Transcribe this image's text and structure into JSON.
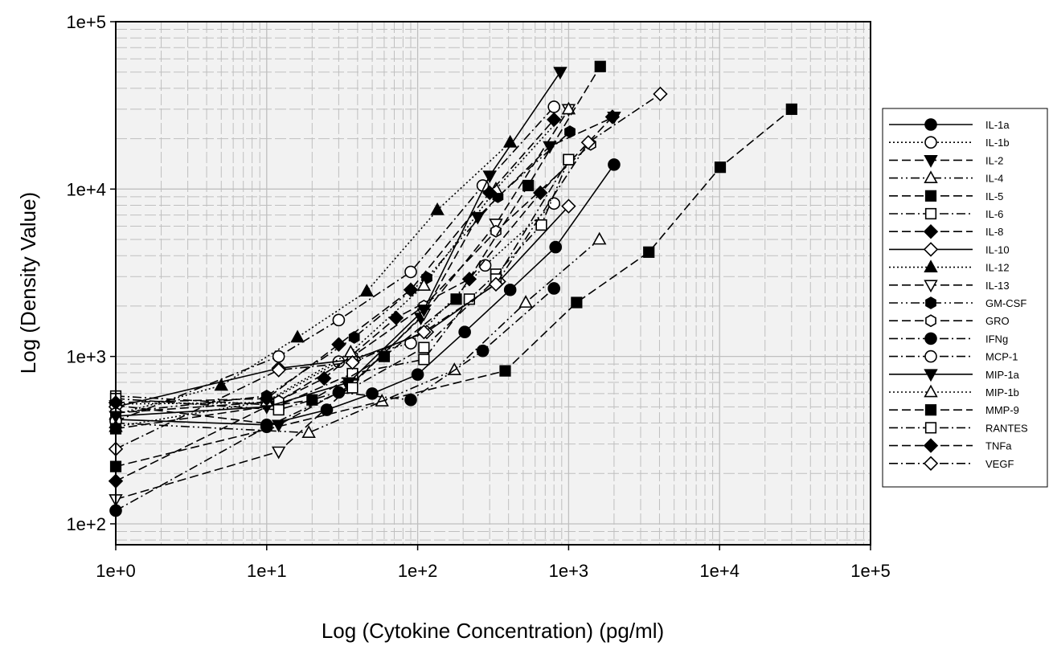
{
  "chart_data": {
    "type": "line",
    "x_scale": "log",
    "y_scale": "log",
    "xlim": [
      1,
      100000
    ],
    "ylim": [
      75,
      100000
    ],
    "grid": true,
    "legend_position": "right",
    "xlabel": "Log (Cytokine Concentration) (pg/ml)",
    "ylabel": "Log (Density Value)",
    "x_tick_labels": [
      "1e+0",
      "1e+1",
      "1e+2",
      "1e+3",
      "1e+4",
      "1e+5"
    ],
    "y_tick_labels": [
      "1e+2",
      "1e+3",
      "1e+4",
      "1e+5"
    ],
    "series": [
      {
        "name": "IL-1a",
        "marker": "circle",
        "fill": "filled",
        "dash": "solid",
        "x": [
          1,
          10,
          25,
          50,
          100,
          205,
          410,
          820,
          2000
        ],
        "y": [
          420,
          390,
          480,
          600,
          780,
          1400,
          2500,
          4500,
          14000
        ]
      },
      {
        "name": "IL-1b",
        "marker": "circle",
        "fill": "open",
        "dash": "dot",
        "x": [
          1,
          10,
          30,
          90,
          280,
          800
        ],
        "y": [
          520,
          530,
          930,
          1200,
          3500,
          8200
        ]
      },
      {
        "name": "IL-2",
        "marker": "triangle-down",
        "fill": "filled",
        "dash": "dash",
        "x": [
          1,
          12,
          35,
          105,
          250,
          750,
          2000
        ],
        "y": [
          510,
          390,
          660,
          1700,
          6800,
          18000,
          27000
        ]
      },
      {
        "name": "IL-4",
        "marker": "triangle-up",
        "fill": "open",
        "dash": "dashdotdot",
        "x": [
          1,
          19,
          58,
          175,
          520,
          1600
        ],
        "y": [
          400,
          350,
          540,
          830,
          2100,
          5000
        ]
      },
      {
        "name": "IL-5",
        "marker": "square",
        "fill": "filled",
        "dash": "dash",
        "x": [
          1,
          380,
          1130,
          3400,
          10100,
          30000
        ],
        "y": [
          220,
          820,
          2100,
          4200,
          13500,
          30000
        ]
      },
      {
        "name": "IL-6",
        "marker": "square",
        "fill": "open",
        "dash": "dashdot",
        "x": [
          1,
          12,
          37,
          110,
          220,
          330,
          660,
          1000
        ],
        "y": [
          580,
          510,
          790,
          960,
          2200,
          3100,
          6100,
          15000
        ]
      },
      {
        "name": "IL-8",
        "marker": "diamond",
        "fill": "filled",
        "dash": "dash",
        "x": [
          1,
          24,
          72,
          220,
          650,
          1950
        ],
        "y": [
          180,
          740,
          1700,
          2900,
          9500,
          27000
        ]
      },
      {
        "name": "IL-10",
        "marker": "diamond",
        "fill": "open",
        "dash": "solid",
        "x": [
          1,
          12,
          38,
          115,
          345,
          1000
        ],
        "y": [
          500,
          850,
          960,
          1400,
          2800,
          7900
        ]
      },
      {
        "name": "IL-12",
        "marker": "triangle-up",
        "fill": "filled",
        "dash": "dot",
        "x": [
          1,
          5,
          16,
          46,
          135,
          410
        ],
        "y": [
          450,
          670,
          1300,
          2450,
          7500,
          19000
        ]
      },
      {
        "name": "IL-13",
        "marker": "triangle-down",
        "fill": "open",
        "dash": "dash",
        "x": [
          1,
          12,
          37,
          110,
          330,
          1000
        ],
        "y": [
          140,
          270,
          680,
          1800,
          6200,
          30000
        ]
      },
      {
        "name": "GM-CSF",
        "marker": "hexagon",
        "fill": "filled",
        "dash": "dashdotdot",
        "x": [
          1,
          10,
          38,
          115,
          340,
          1020
        ],
        "y": [
          460,
          580,
          1300,
          2950,
          9000,
          22000
        ]
      },
      {
        "name": "GRO",
        "marker": "hexagon",
        "fill": "open",
        "dash": "dash",
        "x": [
          1,
          12,
          37,
          110,
          330,
          1400
        ],
        "y": [
          460,
          540,
          1000,
          2000,
          5600,
          18500
        ]
      },
      {
        "name": "IFNg",
        "marker": "circle",
        "fill": "filled",
        "dash": "dashdot",
        "x": [
          1,
          10,
          30,
          90,
          270,
          800
        ],
        "y": [
          120,
          380,
          610,
          550,
          1080,
          2550
        ]
      },
      {
        "name": "MCP-1",
        "marker": "circle",
        "fill": "open",
        "dash": "dashdot",
        "x": [
          1,
          12,
          30,
          90,
          270,
          800
        ],
        "y": [
          410,
          1000,
          1650,
          3200,
          10500,
          31000
        ]
      },
      {
        "name": "MIP-1a",
        "marker": "triangle-down",
        "fill": "filled",
        "dash": "solid",
        "x": [
          1,
          10,
          35,
          110,
          300,
          880
        ],
        "y": [
          440,
          500,
          700,
          1900,
          12000,
          50000
        ]
      },
      {
        "name": "MIP-1b",
        "marker": "triangle-up",
        "fill": "open",
        "dash": "dot",
        "x": [
          1,
          10,
          36,
          110,
          330,
          1000
        ],
        "y": [
          380,
          540,
          1060,
          2650,
          10000,
          30000
        ]
      },
      {
        "name": "MMP-9",
        "marker": "square",
        "fill": "filled",
        "dash": "dash",
        "x": [
          1,
          20,
          60,
          180,
          540,
          1620
        ],
        "y": [
          370,
          550,
          1000,
          2200,
          10500,
          54000
        ]
      },
      {
        "name": "RANTES",
        "marker": "square",
        "fill": "open",
        "dash": "dashdot",
        "x": [
          1,
          12,
          37,
          110,
          330,
          1000
        ],
        "y": [
          560,
          480,
          650,
          1130,
          2900,
          15000
        ]
      },
      {
        "name": "TNFa",
        "marker": "diamond",
        "fill": "filled",
        "dash": "dash",
        "x": [
          1,
          10,
          30,
          90,
          300,
          800
        ],
        "y": [
          530,
          560,
          1180,
          2500,
          9500,
          26000
        ]
      },
      {
        "name": "VEGF",
        "marker": "diamond",
        "fill": "open",
        "dash": "dashdot",
        "x": [
          1,
          12,
          37,
          110,
          330,
          1350,
          4050
        ],
        "y": [
          280,
          830,
          920,
          1400,
          2700,
          19000,
          37000
        ]
      }
    ]
  }
}
